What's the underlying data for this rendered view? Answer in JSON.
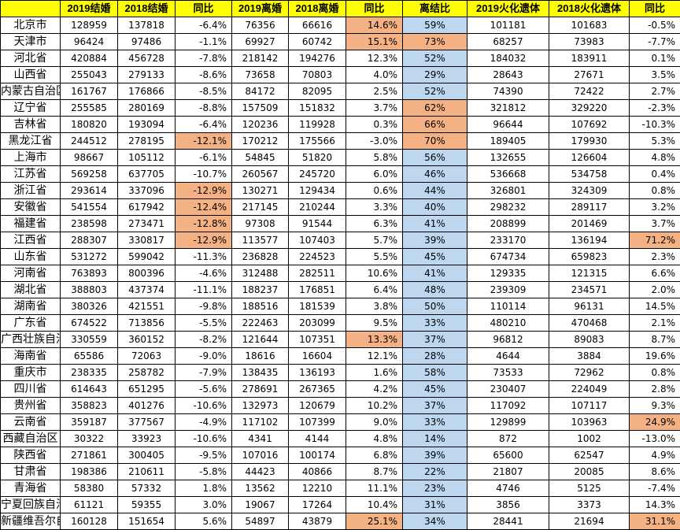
{
  "colors": {
    "header_bg": "#ffff00",
    "highlight_orange": "#f4b183",
    "ratio_blue": "#bdd7ee"
  },
  "headers": [
    "",
    "2019结婚",
    "2018结婚",
    "同比",
    "2019离婚",
    "2018离婚",
    "同比",
    "离结比",
    "2019火化遗体",
    "2018火化遗体",
    "同比"
  ],
  "rows": [
    {
      "province": "北京市",
      "marriage_2019": "128959",
      "marriage_2018": "137818",
      "marriage_yoy": "-6.4%",
      "divorce_2019": "76356",
      "divorce_2018": "66616",
      "divorce_yoy": "14.6%",
      "divorce_marriage_ratio": "59%",
      "cremation_2019": "101181",
      "cremation_2018": "101683",
      "cremation_yoy": "-0.5%",
      "hl_marriage_yoy": false,
      "hl_divorce_yoy": true,
      "hl_ratio": false,
      "hl_cremation_yoy": false
    },
    {
      "province": "天津市",
      "marriage_2019": "96424",
      "marriage_2018": "97486",
      "marriage_yoy": "-1.1%",
      "divorce_2019": "69927",
      "divorce_2018": "60742",
      "divorce_yoy": "15.1%",
      "divorce_marriage_ratio": "73%",
      "cremation_2019": "68257",
      "cremation_2018": "73983",
      "cremation_yoy": "-7.7%",
      "hl_marriage_yoy": false,
      "hl_divorce_yoy": true,
      "hl_ratio": true,
      "hl_cremation_yoy": false
    },
    {
      "province": "河北省",
      "marriage_2019": "420884",
      "marriage_2018": "456728",
      "marriage_yoy": "-7.8%",
      "divorce_2019": "218142",
      "divorce_2018": "194276",
      "divorce_yoy": "12.3%",
      "divorce_marriage_ratio": "52%",
      "cremation_2019": "184032",
      "cremation_2018": "183911",
      "cremation_yoy": "0.1%",
      "hl_marriage_yoy": false,
      "hl_divorce_yoy": false,
      "hl_ratio": false,
      "hl_cremation_yoy": false
    },
    {
      "province": "山西省",
      "marriage_2019": "255043",
      "marriage_2018": "279133",
      "marriage_yoy": "-8.6%",
      "divorce_2019": "73658",
      "divorce_2018": "70803",
      "divorce_yoy": "4.0%",
      "divorce_marriage_ratio": "29%",
      "cremation_2019": "28643",
      "cremation_2018": "27671",
      "cremation_yoy": "3.5%",
      "hl_marriage_yoy": false,
      "hl_divorce_yoy": false,
      "hl_ratio": false,
      "hl_cremation_yoy": false
    },
    {
      "province": "内蒙古自治区",
      "marriage_2019": "161767",
      "marriage_2018": "176866",
      "marriage_yoy": "-8.5%",
      "divorce_2019": "84172",
      "divorce_2018": "82095",
      "divorce_yoy": "2.5%",
      "divorce_marriage_ratio": "52%",
      "cremation_2019": "74390",
      "cremation_2018": "72422",
      "cremation_yoy": "2.7%",
      "hl_marriage_yoy": false,
      "hl_divorce_yoy": false,
      "hl_ratio": false,
      "hl_cremation_yoy": false
    },
    {
      "province": "辽宁省",
      "marriage_2019": "255585",
      "marriage_2018": "280169",
      "marriage_yoy": "-8.8%",
      "divorce_2019": "157509",
      "divorce_2018": "151832",
      "divorce_yoy": "3.7%",
      "divorce_marriage_ratio": "62%",
      "cremation_2019": "321812",
      "cremation_2018": "329220",
      "cremation_yoy": "-2.3%",
      "hl_marriage_yoy": false,
      "hl_divorce_yoy": false,
      "hl_ratio": true,
      "hl_cremation_yoy": false
    },
    {
      "province": "吉林省",
      "marriage_2019": "180820",
      "marriage_2018": "193094",
      "marriage_yoy": "-6.4%",
      "divorce_2019": "120236",
      "divorce_2018": "119928",
      "divorce_yoy": "0.3%",
      "divorce_marriage_ratio": "66%",
      "cremation_2019": "96644",
      "cremation_2018": "107692",
      "cremation_yoy": "-10.3%",
      "hl_marriage_yoy": false,
      "hl_divorce_yoy": false,
      "hl_ratio": true,
      "hl_cremation_yoy": false
    },
    {
      "province": "黑龙江省",
      "marriage_2019": "244512",
      "marriage_2018": "278195",
      "marriage_yoy": "-12.1%",
      "divorce_2019": "170212",
      "divorce_2018": "175566",
      "divorce_yoy": "-3.0%",
      "divorce_marriage_ratio": "70%",
      "cremation_2019": "189405",
      "cremation_2018": "179930",
      "cremation_yoy": "5.3%",
      "hl_marriage_yoy": true,
      "hl_divorce_yoy": false,
      "hl_ratio": true,
      "hl_cremation_yoy": false
    },
    {
      "province": "上海市",
      "marriage_2019": "98667",
      "marriage_2018": "105112",
      "marriage_yoy": "-6.1%",
      "divorce_2019": "54845",
      "divorce_2018": "51820",
      "divorce_yoy": "5.8%",
      "divorce_marriage_ratio": "56%",
      "cremation_2019": "132655",
      "cremation_2018": "126604",
      "cremation_yoy": "4.8%",
      "hl_marriage_yoy": false,
      "hl_divorce_yoy": false,
      "hl_ratio": false,
      "hl_cremation_yoy": false
    },
    {
      "province": "江苏省",
      "marriage_2019": "569258",
      "marriage_2018": "637705",
      "marriage_yoy": "-10.7%",
      "divorce_2019": "260567",
      "divorce_2018": "245720",
      "divorce_yoy": "6.0%",
      "divorce_marriage_ratio": "46%",
      "cremation_2019": "536668",
      "cremation_2018": "534758",
      "cremation_yoy": "0.4%",
      "hl_marriage_yoy": false,
      "hl_divorce_yoy": false,
      "hl_ratio": false,
      "hl_cremation_yoy": false
    },
    {
      "province": "浙江省",
      "marriage_2019": "293614",
      "marriage_2018": "337096",
      "marriage_yoy": "-12.9%",
      "divorce_2019": "130271",
      "divorce_2018": "129434",
      "divorce_yoy": "0.6%",
      "divorce_marriage_ratio": "44%",
      "cremation_2019": "326801",
      "cremation_2018": "324309",
      "cremation_yoy": "0.8%",
      "hl_marriage_yoy": true,
      "hl_divorce_yoy": false,
      "hl_ratio": false,
      "hl_cremation_yoy": false
    },
    {
      "province": "安徽省",
      "marriage_2019": "541554",
      "marriage_2018": "617942",
      "marriage_yoy": "-12.4%",
      "divorce_2019": "217145",
      "divorce_2018": "210244",
      "divorce_yoy": "3.3%",
      "divorce_marriage_ratio": "40%",
      "cremation_2019": "298232",
      "cremation_2018": "289117",
      "cremation_yoy": "3.2%",
      "hl_marriage_yoy": true,
      "hl_divorce_yoy": false,
      "hl_ratio": false,
      "hl_cremation_yoy": false
    },
    {
      "province": "福建省",
      "marriage_2019": "238598",
      "marriage_2018": "273471",
      "marriage_yoy": "-12.8%",
      "divorce_2019": "97308",
      "divorce_2018": "91544",
      "divorce_yoy": "6.3%",
      "divorce_marriage_ratio": "41%",
      "cremation_2019": "208899",
      "cremation_2018": "201469",
      "cremation_yoy": "3.7%",
      "hl_marriage_yoy": true,
      "hl_divorce_yoy": false,
      "hl_ratio": false,
      "hl_cremation_yoy": false
    },
    {
      "province": "江西省",
      "marriage_2019": "288307",
      "marriage_2018": "330817",
      "marriage_yoy": "-12.9%",
      "divorce_2019": "113577",
      "divorce_2018": "107403",
      "divorce_yoy": "5.7%",
      "divorce_marriage_ratio": "39%",
      "cremation_2019": "233170",
      "cremation_2018": "136194",
      "cremation_yoy": "71.2%",
      "hl_marriage_yoy": true,
      "hl_divorce_yoy": false,
      "hl_ratio": false,
      "hl_cremation_yoy": true
    },
    {
      "province": "山东省",
      "marriage_2019": "531272",
      "marriage_2018": "599042",
      "marriage_yoy": "-11.3%",
      "divorce_2019": "236828",
      "divorce_2018": "224523",
      "divorce_yoy": "5.5%",
      "divorce_marriage_ratio": "45%",
      "cremation_2019": "674734",
      "cremation_2018": "659823",
      "cremation_yoy": "2.3%",
      "hl_marriage_yoy": false,
      "hl_divorce_yoy": false,
      "hl_ratio": false,
      "hl_cremation_yoy": false
    },
    {
      "province": "河南省",
      "marriage_2019": "763893",
      "marriage_2018": "800396",
      "marriage_yoy": "-4.6%",
      "divorce_2019": "312488",
      "divorce_2018": "282511",
      "divorce_yoy": "10.6%",
      "divorce_marriage_ratio": "41%",
      "cremation_2019": "129335",
      "cremation_2018": "121315",
      "cremation_yoy": "6.6%",
      "hl_marriage_yoy": false,
      "hl_divorce_yoy": false,
      "hl_ratio": false,
      "hl_cremation_yoy": false
    },
    {
      "province": "湖北省",
      "marriage_2019": "388803",
      "marriage_2018": "437374",
      "marriage_yoy": "-11.1%",
      "divorce_2019": "188237",
      "divorce_2018": "176851",
      "divorce_yoy": "6.4%",
      "divorce_marriage_ratio": "48%",
      "cremation_2019": "239309",
      "cremation_2018": "234571",
      "cremation_yoy": "2.0%",
      "hl_marriage_yoy": false,
      "hl_divorce_yoy": false,
      "hl_ratio": false,
      "hl_cremation_yoy": false
    },
    {
      "province": "湖南省",
      "marriage_2019": "380326",
      "marriage_2018": "421551",
      "marriage_yoy": "-9.8%",
      "divorce_2019": "188516",
      "divorce_2018": "181539",
      "divorce_yoy": "3.8%",
      "divorce_marriage_ratio": "50%",
      "cremation_2019": "110114",
      "cremation_2018": "96131",
      "cremation_yoy": "14.5%",
      "hl_marriage_yoy": false,
      "hl_divorce_yoy": false,
      "hl_ratio": false,
      "hl_cremation_yoy": false
    },
    {
      "province": "广东省",
      "marriage_2019": "674522",
      "marriage_2018": "713856",
      "marriage_yoy": "-5.5%",
      "divorce_2019": "222463",
      "divorce_2018": "203099",
      "divorce_yoy": "9.5%",
      "divorce_marriage_ratio": "33%",
      "cremation_2019": "480210",
      "cremation_2018": "470468",
      "cremation_yoy": "2.1%",
      "hl_marriage_yoy": false,
      "hl_divorce_yoy": false,
      "hl_ratio": false,
      "hl_cremation_yoy": false
    },
    {
      "province": "广西壮族自治区",
      "marriage_2019": "330559",
      "marriage_2018": "360152",
      "marriage_yoy": "-8.2%",
      "divorce_2019": "121644",
      "divorce_2018": "107351",
      "divorce_yoy": "13.3%",
      "divorce_marriage_ratio": "37%",
      "cremation_2019": "96812",
      "cremation_2018": "89083",
      "cremation_yoy": "8.7%",
      "hl_marriage_yoy": false,
      "hl_divorce_yoy": true,
      "hl_ratio": false,
      "hl_cremation_yoy": false
    },
    {
      "province": "海南省",
      "marriage_2019": "65586",
      "marriage_2018": "72063",
      "marriage_yoy": "-9.0%",
      "divorce_2019": "18616",
      "divorce_2018": "16604",
      "divorce_yoy": "12.1%",
      "divorce_marriage_ratio": "28%",
      "cremation_2019": "4644",
      "cremation_2018": "3884",
      "cremation_yoy": "19.6%",
      "hl_marriage_yoy": false,
      "hl_divorce_yoy": false,
      "hl_ratio": false,
      "hl_cremation_yoy": false
    },
    {
      "province": "重庆市",
      "marriage_2019": "238335",
      "marriage_2018": "258782",
      "marriage_yoy": "-7.9%",
      "divorce_2019": "138435",
      "divorce_2018": "136193",
      "divorce_yoy": "1.6%",
      "divorce_marriage_ratio": "58%",
      "cremation_2019": "73533",
      "cremation_2018": "72962",
      "cremation_yoy": "0.8%",
      "hl_marriage_yoy": false,
      "hl_divorce_yoy": false,
      "hl_ratio": false,
      "hl_cremation_yoy": false
    },
    {
      "province": "四川省",
      "marriage_2019": "614643",
      "marriage_2018": "651295",
      "marriage_yoy": "-5.6%",
      "divorce_2019": "278691",
      "divorce_2018": "267365",
      "divorce_yoy": "4.2%",
      "divorce_marriage_ratio": "45%",
      "cremation_2019": "230407",
      "cremation_2018": "224049",
      "cremation_yoy": "2.8%",
      "hl_marriage_yoy": false,
      "hl_divorce_yoy": false,
      "hl_ratio": false,
      "hl_cremation_yoy": false
    },
    {
      "province": "贵州省",
      "marriage_2019": "358823",
      "marriage_2018": "401276",
      "marriage_yoy": "-10.6%",
      "divorce_2019": "132973",
      "divorce_2018": "120679",
      "divorce_yoy": "10.2%",
      "divorce_marriage_ratio": "37%",
      "cremation_2019": "117092",
      "cremation_2018": "107117",
      "cremation_yoy": "9.3%",
      "hl_marriage_yoy": false,
      "hl_divorce_yoy": false,
      "hl_ratio": false,
      "hl_cremation_yoy": false
    },
    {
      "province": "云南省",
      "marriage_2019": "359187",
      "marriage_2018": "377567",
      "marriage_yoy": "-4.9%",
      "divorce_2019": "117102",
      "divorce_2018": "107399",
      "divorce_yoy": "9.0%",
      "divorce_marriage_ratio": "33%",
      "cremation_2019": "129899",
      "cremation_2018": "103963",
      "cremation_yoy": "24.9%",
      "hl_marriage_yoy": false,
      "hl_divorce_yoy": false,
      "hl_ratio": false,
      "hl_cremation_yoy": true
    },
    {
      "province": "西藏自治区",
      "marriage_2019": "30322",
      "marriage_2018": "33923",
      "marriage_yoy": "-10.6%",
      "divorce_2019": "4341",
      "divorce_2018": "4144",
      "divorce_yoy": "4.8%",
      "divorce_marriage_ratio": "14%",
      "cremation_2019": "872",
      "cremation_2018": "1002",
      "cremation_yoy": "-13.0%",
      "hl_marriage_yoy": false,
      "hl_divorce_yoy": false,
      "hl_ratio": false,
      "hl_cremation_yoy": false
    },
    {
      "province": "陕西省",
      "marriage_2019": "271861",
      "marriage_2018": "300405",
      "marriage_yoy": "-9.5%",
      "divorce_2019": "107016",
      "divorce_2018": "100174",
      "divorce_yoy": "6.8%",
      "divorce_marriage_ratio": "39%",
      "cremation_2019": "65600",
      "cremation_2018": "62547",
      "cremation_yoy": "4.9%",
      "hl_marriage_yoy": false,
      "hl_divorce_yoy": false,
      "hl_ratio": false,
      "hl_cremation_yoy": false
    },
    {
      "province": "甘肃省",
      "marriage_2019": "198386",
      "marriage_2018": "210611",
      "marriage_yoy": "-5.8%",
      "divorce_2019": "44423",
      "divorce_2018": "40866",
      "divorce_yoy": "8.7%",
      "divorce_marriage_ratio": "22%",
      "cremation_2019": "21807",
      "cremation_2018": "20085",
      "cremation_yoy": "8.6%",
      "hl_marriage_yoy": false,
      "hl_divorce_yoy": false,
      "hl_ratio": false,
      "hl_cremation_yoy": false
    },
    {
      "province": "青海省",
      "marriage_2019": "58380",
      "marriage_2018": "57332",
      "marriage_yoy": "1.8%",
      "divorce_2019": "13562",
      "divorce_2018": "12210",
      "divorce_yoy": "11.1%",
      "divorce_marriage_ratio": "23%",
      "cremation_2019": "4746",
      "cremation_2018": "5125",
      "cremation_yoy": "-7.4%",
      "hl_marriage_yoy": false,
      "hl_divorce_yoy": false,
      "hl_ratio": false,
      "hl_cremation_yoy": false
    },
    {
      "province": "宁夏回族自治区",
      "marriage_2019": "61121",
      "marriage_2018": "59355",
      "marriage_yoy": "3.0%",
      "divorce_2019": "19067",
      "divorce_2018": "17264",
      "divorce_yoy": "10.4%",
      "divorce_marriage_ratio": "31%",
      "cremation_2019": "3856",
      "cremation_2018": "3373",
      "cremation_yoy": "14.3%",
      "hl_marriage_yoy": false,
      "hl_divorce_yoy": false,
      "hl_ratio": false,
      "hl_cremation_yoy": false
    },
    {
      "province": "新疆维吾尔自治区",
      "marriage_2019": "160128",
      "marriage_2018": "151654",
      "marriage_yoy": "5.6%",
      "divorce_2019": "54897",
      "divorce_2018": "43879",
      "divorce_yoy": "25.1%",
      "divorce_marriage_ratio": "34%",
      "cremation_2019": "28441",
      "cremation_2018": "21694",
      "cremation_yoy": "31.1%",
      "hl_marriage_yoy": false,
      "hl_divorce_yoy": true,
      "hl_ratio": false,
      "hl_cremation_yoy": true
    }
  ]
}
